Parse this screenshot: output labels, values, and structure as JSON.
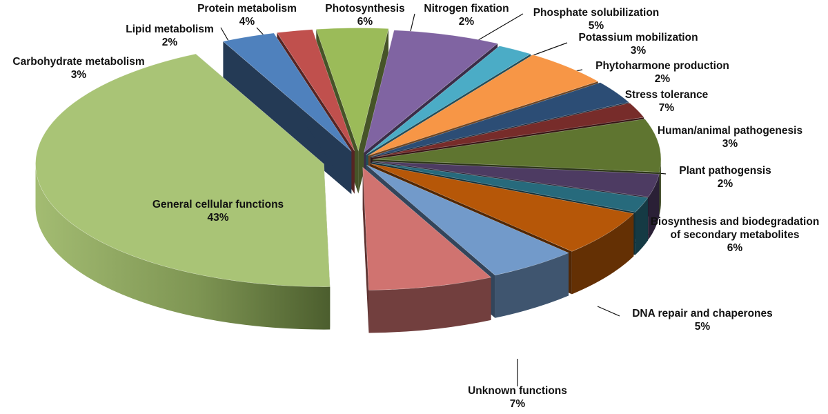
{
  "chart_data": {
    "type": "pie",
    "style": "3d-exploded",
    "legend": "none",
    "slices": [
      {
        "label": "Photosynthesis",
        "percent_label": "6%",
        "value": 6,
        "color": "#8064A2"
      },
      {
        "label": "Nitrogen fixation",
        "percent_label": "2%",
        "value": 2,
        "color": "#4BACC6"
      },
      {
        "label": "Phosphate solubilization",
        "percent_label": "5%",
        "value": 5,
        "color": "#F79646"
      },
      {
        "label": "Potassium mobilization",
        "percent_label": "3%",
        "value": 3,
        "color": "#2C4D75"
      },
      {
        "label": "Phytoharmone production",
        "percent_label": "2%",
        "value": 2,
        "color": "#772C2A"
      },
      {
        "label": "Stress tolerance",
        "percent_label": "7%",
        "value": 7,
        "color": "#5F7530"
      },
      {
        "label": "Human/animal pathogenesis",
        "percent_label": "3%",
        "value": 3,
        "color": "#4D3B62"
      },
      {
        "label": "Plant pathogensis",
        "percent_label": "2%",
        "value": 2,
        "color": "#276A7C"
      },
      {
        "label": "Biosynthesis and biodegradation of secondary metabolites",
        "percent_label": "6%",
        "value": 6,
        "color": "#B65708"
      },
      {
        "label": "DNA repair and chaperones",
        "percent_label": "5%",
        "value": 5,
        "color": "#729ACA"
      },
      {
        "label": "Unknown functions",
        "percent_label": "7%",
        "value": 7,
        "color": "#D07370"
      },
      {
        "label": "General cellular functions",
        "percent_label": "43%",
        "value": 43,
        "color": "#A9C476"
      },
      {
        "label": "Carbohydrate metabolism",
        "percent_label": "3%",
        "value": 3,
        "color": "#4F81BD"
      },
      {
        "label": "Lipid metabolism",
        "percent_label": "2%",
        "value": 2,
        "color": "#C0504D"
      },
      {
        "label": "Protein metabolism",
        "percent_label": "4%",
        "value": 4,
        "color": "#9BBB59"
      }
    ]
  }
}
